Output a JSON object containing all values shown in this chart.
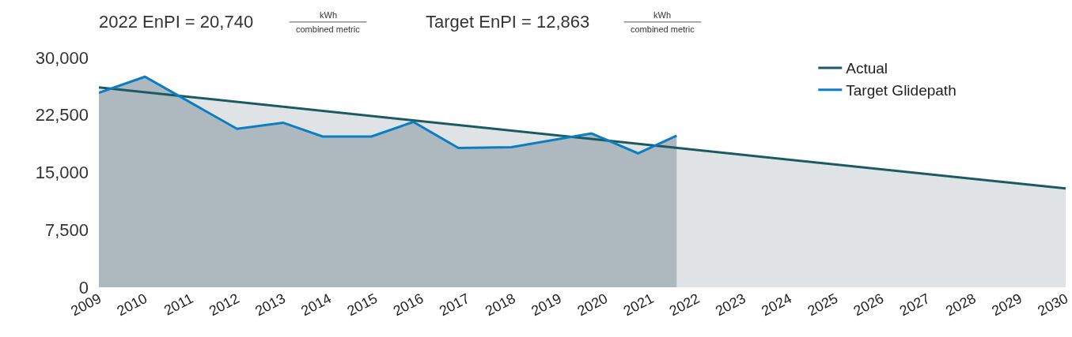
{
  "chart_data": {
    "type": "area",
    "annotations": [
      "2022 EnPI = 20,740",
      "kWh",
      "combined metric",
      "Target EnPI = 12,863",
      "kWh",
      "combined metric"
    ],
    "xlim": [
      2009,
      2030
    ],
    "xticks": [
      2009,
      2010,
      2011,
      2012,
      2013,
      2014,
      2015,
      2016,
      2017,
      2018,
      2019,
      2020,
      2021,
      2022,
      2023,
      2024,
      2025,
      2026,
      2027,
      2028,
      2029,
      2030
    ],
    "ylim": [
      0,
      30000
    ],
    "yticks": [
      {
        "value": 0,
        "label": "0"
      },
      {
        "value": 7500,
        "label": "7,500"
      },
      {
        "value": 15000,
        "label": "15,000"
      },
      {
        "value": 22500,
        "label": "22,500"
      },
      {
        "value": 30000,
        "label": "30,000"
      }
    ],
    "grid": false,
    "legend": "top right",
    "series": [
      {
        "name": "Actual",
        "color": "#1b5a63",
        "x": [
          2009,
          2030
        ],
        "values": [
          26100,
          12900
        ]
      },
      {
        "name": "Target Glidepath",
        "color": "#0a7dc4",
        "x": [
          2009,
          2010,
          2012,
          2013,
          2013.86,
          2014.92,
          2015.83,
          2016.81,
          2017.96,
          2019.7,
          2020.71,
          2021.55
        ],
        "values": [
          25400,
          27500,
          20700,
          21500,
          19700,
          19700,
          21600,
          18200,
          18300,
          20100,
          17500,
          19800
        ]
      }
    ]
  }
}
